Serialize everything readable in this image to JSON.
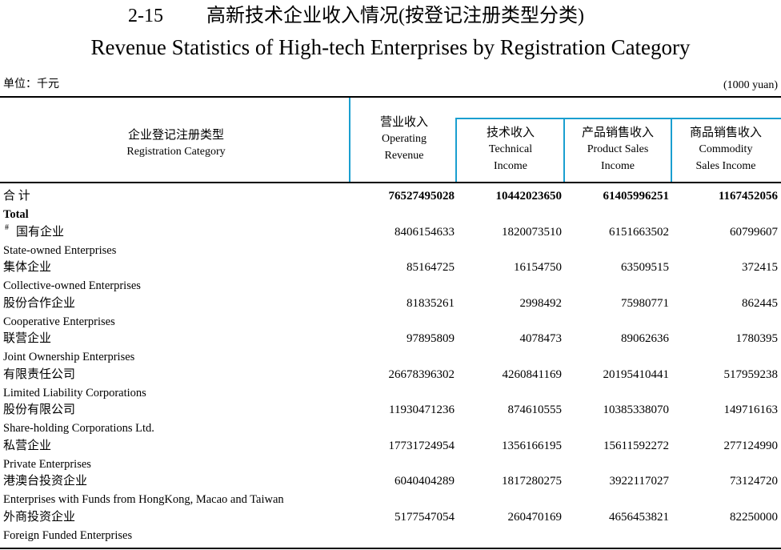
{
  "header": {
    "table_number": "2-15",
    "title_cn": "高新技术企业收入情况(按登记注册类型分类)",
    "title_en": "Revenue Statistics of High-tech Enterprises by Registration Category",
    "unit_cn": "单位：千元",
    "unit_en": "(1000 yuan)"
  },
  "table": {
    "columns": [
      {
        "cn": "企业登记注册类型",
        "en": [
          "Registration Category"
        ]
      },
      {
        "cn": "营业收入",
        "en": [
          "Operating",
          "Revenue"
        ]
      },
      {
        "cn": "技术收入",
        "en": [
          "Technical",
          "Income"
        ]
      },
      {
        "cn": "产品销售收入",
        "en": [
          "Product Sales",
          "Income"
        ]
      },
      {
        "cn": "商品销售收入",
        "en": [
          "Commodity",
          "Sales Income"
        ]
      }
    ],
    "rows": [
      {
        "cn": "合 计",
        "en": "Total",
        "values": [
          76527495028,
          10442023650,
          61405996251,
          1167452056
        ]
      },
      {
        "marker": "#",
        "cn": "国有企业",
        "en": "State-owned Enterprises",
        "values": [
          8406154633,
          1820073510,
          6151663502,
          60799607
        ]
      },
      {
        "cn": "集体企业",
        "en": "Collective-owned Enterprises",
        "values": [
          85164725,
          16154750,
          63509515,
          372415
        ]
      },
      {
        "cn": "股份合作企业",
        "en": "Cooperative Enterprises",
        "values": [
          81835261,
          2998492,
          75980771,
          862445
        ]
      },
      {
        "cn": "联营企业",
        "en": "Joint Ownership Enterprises",
        "values": [
          97895809,
          4078473,
          89062636,
          1780395
        ]
      },
      {
        "cn": "有限责任公司",
        "en": "Limited Liability Corporations",
        "values": [
          26678396302,
          4260841169,
          20195410441,
          517959238
        ]
      },
      {
        "cn": "股份有限公司",
        "en": "Share-holding Corporations Ltd.",
        "values": [
          11930471236,
          874610555,
          10385338070,
          149716163
        ]
      },
      {
        "cn": "私营企业",
        "en": "Private Enterprises",
        "values": [
          17731724954,
          1356166195,
          15611592272,
          277124990
        ]
      },
      {
        "cn": "港澳台投资企业",
        "en": "Enterprises with Funds from HongKong, Macao and Taiwan",
        "values": [
          6040404289,
          1817280275,
          3922117027,
          73124720
        ]
      },
      {
        "cn": "外商投资企业",
        "en": "Foreign Funded Enterprises",
        "values": [
          5177547054,
          260470169,
          4656453821,
          82250000
        ]
      }
    ]
  }
}
